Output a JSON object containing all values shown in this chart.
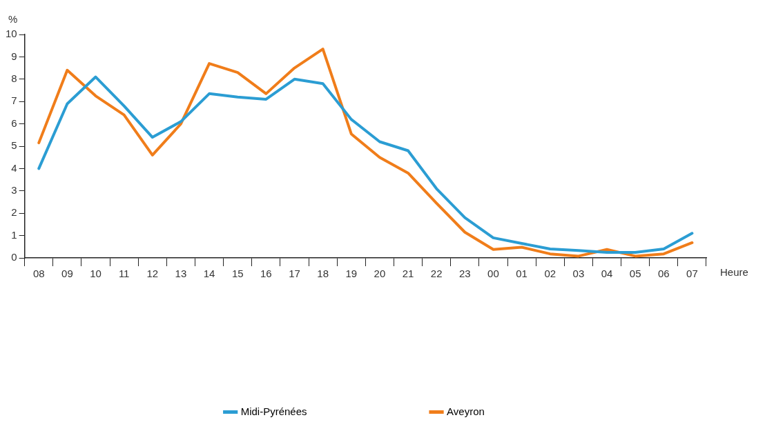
{
  "chart_data": {
    "type": "line",
    "ylabel": "%",
    "xlabel": "Heure",
    "categories": [
      "08",
      "09",
      "10",
      "11",
      "12",
      "13",
      "14",
      "15",
      "16",
      "17",
      "18",
      "19",
      "20",
      "21",
      "22",
      "23",
      "00",
      "01",
      "02",
      "03",
      "04",
      "05",
      "06",
      "07"
    ],
    "series": [
      {
        "name": "Midi-Pyrénées",
        "color": "#2b9dd3",
        "values": [
          4.0,
          6.9,
          8.1,
          6.8,
          5.4,
          6.1,
          7.35,
          7.2,
          7.1,
          8.0,
          7.8,
          6.2,
          5.2,
          4.8,
          3.1,
          1.8,
          0.9,
          0.65,
          0.4,
          0.33,
          0.25,
          0.25,
          0.4,
          1.1
        ]
      },
      {
        "name": "Aveyron",
        "color": "#f07d1a",
        "values": [
          5.15,
          8.4,
          7.25,
          6.4,
          4.6,
          6.0,
          8.7,
          8.3,
          7.35,
          8.5,
          9.35,
          5.55,
          4.5,
          3.8,
          2.45,
          1.15,
          0.38,
          0.48,
          0.18,
          0.08,
          0.38,
          0.08,
          0.18,
          0.68
        ]
      }
    ],
    "ylim": [
      0,
      10
    ],
    "yticks": [
      0,
      1,
      2,
      3,
      4,
      5,
      6,
      7,
      8,
      9,
      10
    ],
    "grid": false,
    "legend": "bottom",
    "marker": "none",
    "line_style": "solid"
  }
}
